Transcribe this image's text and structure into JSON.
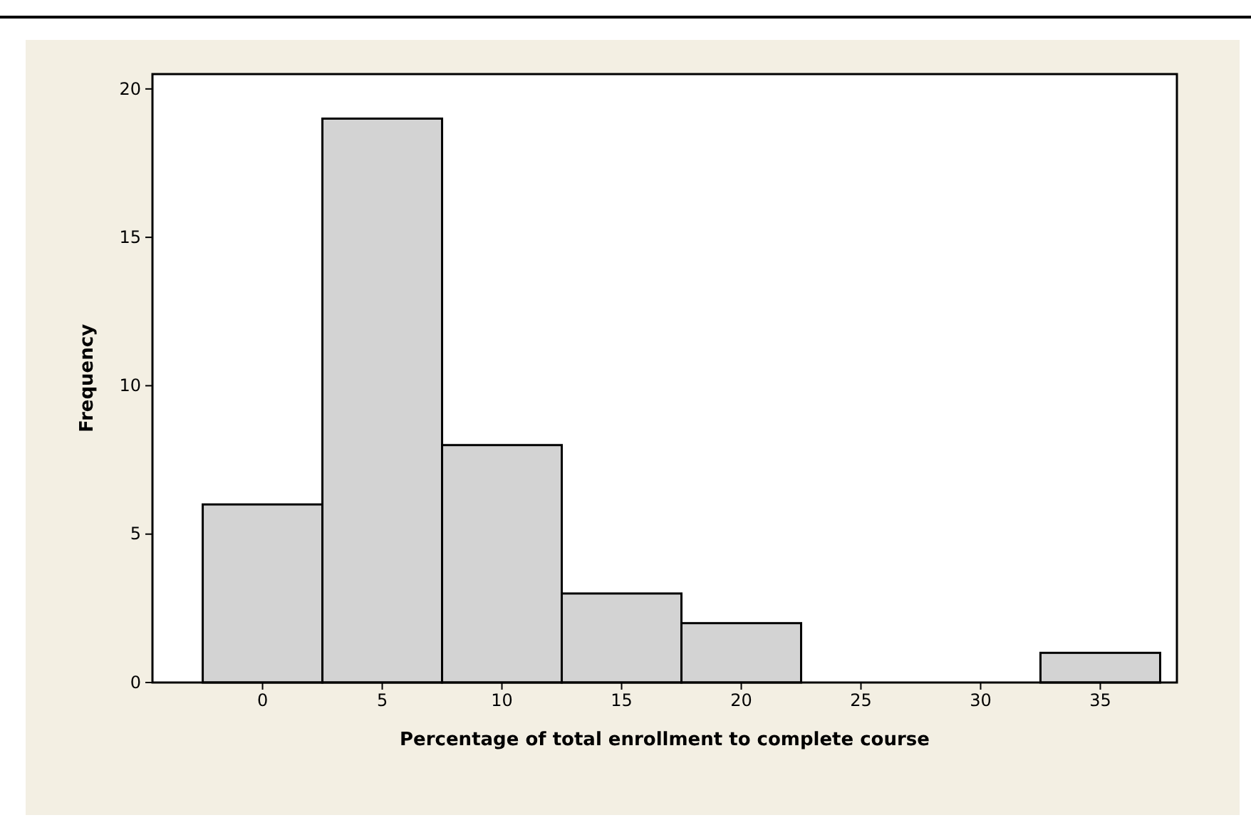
{
  "chart_data": {
    "type": "histogram",
    "xlabel": "Percentage of total enrollment to complete course",
    "ylabel": "Frequency",
    "bins": [
      -2.5,
      2.5,
      7.5,
      12.5,
      17.5,
      22.5,
      27.5,
      32.5,
      37.5
    ],
    "values": [
      6,
      19,
      8,
      3,
      2,
      0,
      0,
      1
    ],
    "color": "#d3d3d3",
    "xlim": [
      -4.6,
      38.2
    ],
    "xticks": [
      0,
      5,
      10,
      15,
      20,
      25,
      30,
      35
    ],
    "ylim": [
      0,
      20.5
    ],
    "yticks": [
      0,
      5,
      10,
      15,
      20
    ],
    "grid": false
  }
}
